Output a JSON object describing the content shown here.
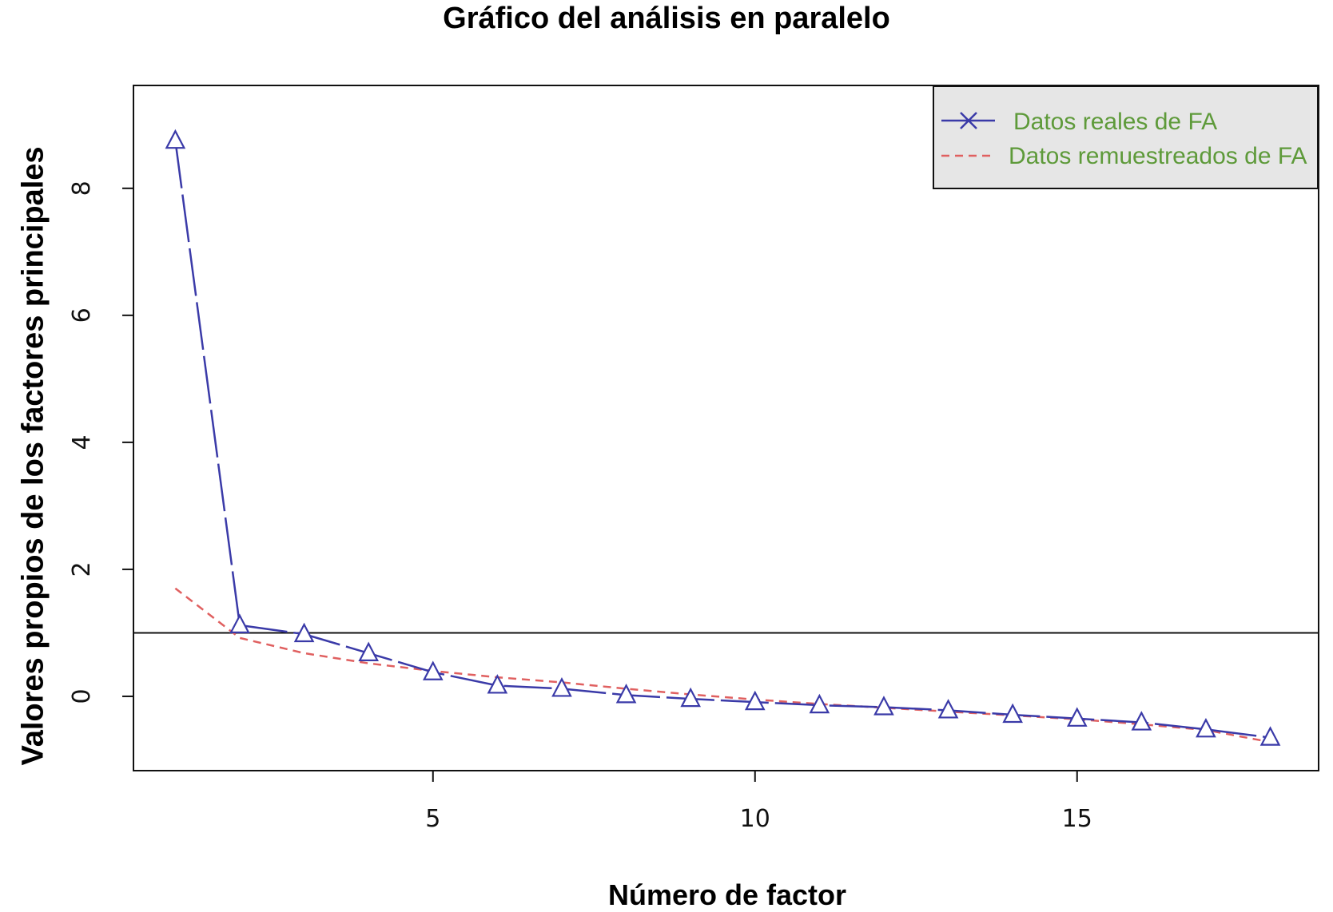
{
  "chart_data": {
    "type": "line",
    "title": "Gráfico del análisis en paralelo",
    "xlabel": "Número de factor",
    "ylabel": "Valores propios de los factores principales",
    "xlim": [
      0.35,
      18.75
    ],
    "ylim": [
      -1.17,
      9.62
    ],
    "x_ticks": [
      5,
      10,
      15
    ],
    "y_ticks": [
      0,
      2,
      4,
      6,
      8
    ],
    "reference_line": 1,
    "grid": false,
    "legend_position": "top-right",
    "x": [
      1,
      2,
      3,
      4,
      5,
      6,
      7,
      8,
      9,
      10,
      11,
      12,
      13,
      14,
      15,
      16,
      17,
      18
    ],
    "series": [
      {
        "name": "Datos reales de FA",
        "marker": "triangle",
        "values": [
          8.75,
          1.12,
          0.98,
          0.68,
          0.38,
          0.17,
          0.12,
          0.02,
          -0.04,
          -0.09,
          -0.14,
          -0.17,
          -0.22,
          -0.29,
          -0.35,
          -0.41,
          -0.52,
          -0.65
        ]
      },
      {
        "name": "Datos remuestreados de FA",
        "values": [
          1.7,
          0.92,
          0.68,
          0.52,
          0.4,
          0.3,
          0.22,
          0.12,
          0.03,
          -0.05,
          -0.12,
          -0.18,
          -0.24,
          -0.3,
          -0.36,
          -0.44,
          -0.53,
          -0.72
        ]
      }
    ]
  },
  "colors": {
    "real": "#3a3aa8",
    "resampled": "#e06060",
    "legend_text": "#5e9a3a",
    "legend_bg": "#e6e6e6",
    "axis": "#111111"
  }
}
